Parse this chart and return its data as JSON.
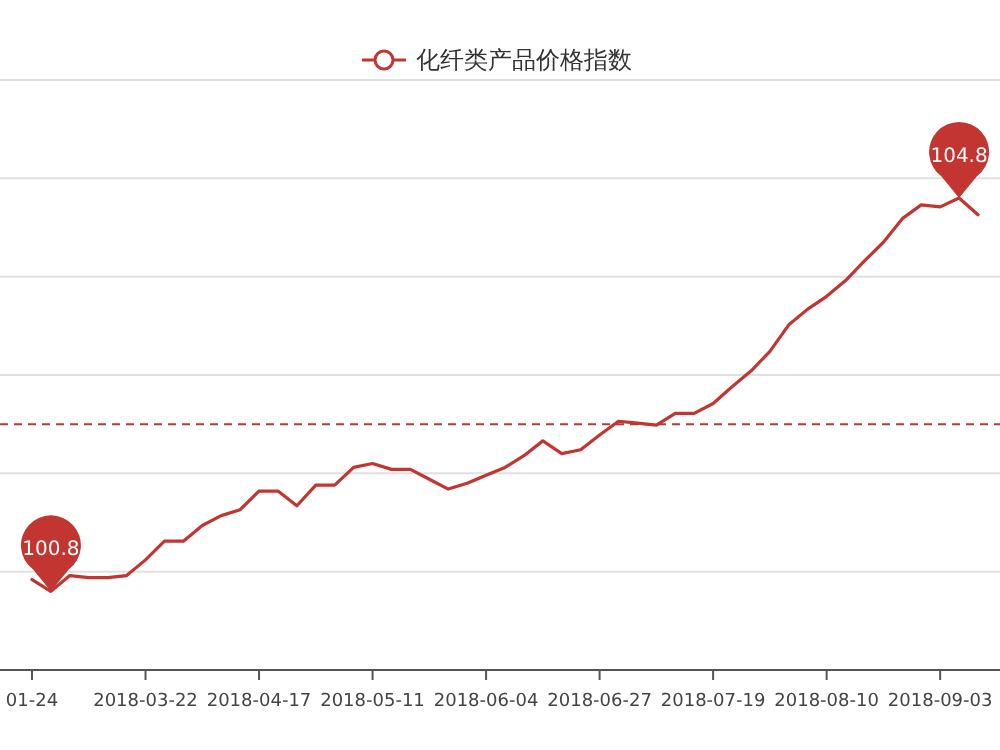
{
  "chart_data": {
    "type": "line",
    "categories": [
      "01-24",
      null,
      null,
      null,
      null,
      null,
      "2018-03-22",
      null,
      null,
      null,
      null,
      null,
      "2018-04-17",
      null,
      null,
      null,
      null,
      null,
      "2018-05-11",
      null,
      null,
      null,
      null,
      null,
      "2018-06-04",
      null,
      null,
      null,
      null,
      null,
      "2018-06-27",
      null,
      null,
      null,
      null,
      null,
      "2018-07-19",
      null,
      null,
      null,
      null,
      null,
      "2018-08-10",
      null,
      null,
      null,
      null,
      null,
      "2018-09-03",
      null,
      null
    ],
    "series": [
      {
        "name": "化纤类产品价格指数",
        "color": "#c23531",
        "values": [
          100.92,
          100.8,
          100.96,
          100.94,
          100.94,
          100.96,
          101.12,
          101.31,
          101.31,
          101.47,
          101.57,
          101.63,
          101.82,
          101.82,
          101.67,
          101.88,
          101.88,
          102.06,
          102.1,
          102.04,
          102.04,
          101.94,
          101.84,
          101.9,
          101.98,
          102.06,
          102.18,
          102.33,
          102.2,
          102.24,
          102.39,
          102.53,
          102.51,
          102.49,
          102.61,
          102.61,
          102.71,
          102.88,
          103.04,
          103.24,
          103.51,
          103.67,
          103.8,
          103.96,
          104.16,
          104.35,
          104.59,
          104.73,
          104.71,
          104.8,
          104.63
        ],
        "value_labels": [
          null,
          "100.8",
          null,
          null,
          null,
          null,
          null,
          null,
          null,
          null,
          null,
          null,
          null,
          null,
          null,
          null,
          null,
          null,
          null,
          null,
          null,
          null,
          null,
          null,
          null,
          null,
          null,
          null,
          null,
          null,
          null,
          null,
          null,
          null,
          null,
          null,
          null,
          null,
          null,
          null,
          null,
          null,
          null,
          null,
          null,
          null,
          null,
          null,
          null,
          "104.8",
          null
        ]
      }
    ],
    "ylim": [
      100,
      106
    ],
    "yticks": [
      {
        "value": 100,
        "label": null
      },
      {
        "value": 101,
        "label": null
      },
      {
        "value": 102,
        "label": null
      },
      {
        "value": 103,
        "label": null
      },
      {
        "value": 104,
        "label": null
      },
      {
        "value": 105,
        "label": null
      },
      {
        "value": 106,
        "label": null
      }
    ],
    "tick_labels": "x",
    "grid": "y",
    "legend": "top",
    "marker": "none",
    "ref_lines": [
      {
        "axis": "y",
        "value": 102.5,
        "color": "#c23531",
        "line_style": "dashed"
      }
    ]
  }
}
